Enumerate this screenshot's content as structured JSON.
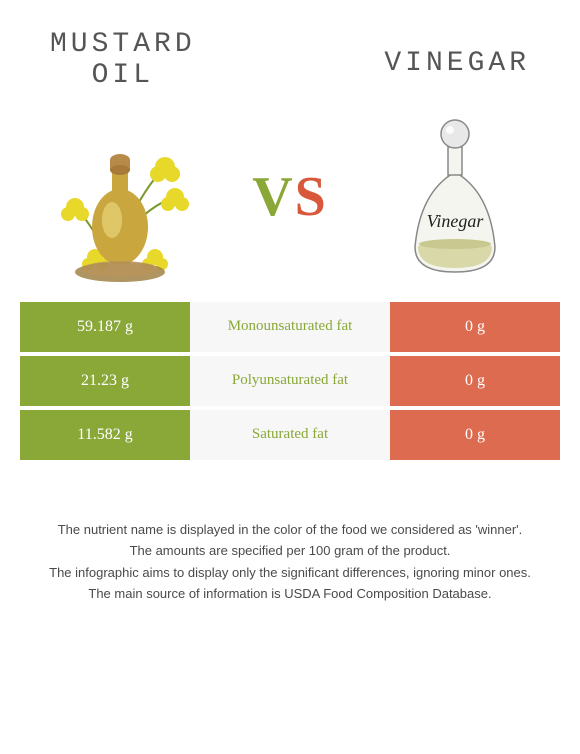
{
  "header": {
    "left_title_line1": "MUSTARD",
    "left_title_line2": "OIL",
    "right_title": "VINEGAR",
    "vs_v": "V",
    "vs_s": "S"
  },
  "colors": {
    "left_food": "#8aa838",
    "right_food": "#dd6b50",
    "mid_bg": "#f7f7f7",
    "cell_text": "#ffffff",
    "title_text": "#555555",
    "footnote_text": "#4a4a4a"
  },
  "comparison": {
    "rows": [
      {
        "left_value": "59.187 g",
        "nutrient": "Monounsaturated fat",
        "right_value": "0 g",
        "winner": "left"
      },
      {
        "left_value": "21.23 g",
        "nutrient": "Polyunsaturated fat",
        "right_value": "0 g",
        "winner": "left"
      },
      {
        "left_value": "11.582 g",
        "nutrient": "Saturated fat",
        "right_value": "0 g",
        "winner": "left"
      }
    ]
  },
  "footnotes": {
    "line1": "The nutrient name is displayed in the color of the food we considered as 'winner'.",
    "line2": "The amounts are specified per 100 gram of the product.",
    "line3": "The infographic aims to display only the significant differences, ignoring minor ones.",
    "line4": "The main source of information is USDA Food Composition Database."
  },
  "illustrations": {
    "mustard": {
      "bottle_body": "#c9a73e",
      "bottle_highlight": "#e8d47a",
      "cork": "#b88a4a",
      "flowers": "#e8d82a",
      "stems": "#7a9a2e",
      "seeds": "#9a7a3a"
    },
    "vinegar": {
      "bottle_outline": "#888888",
      "bottle_fill": "#f5f5f0",
      "liquid": "#d8d8a8",
      "stopper": "#bfbfbf",
      "label_text": "Vinegar"
    }
  }
}
